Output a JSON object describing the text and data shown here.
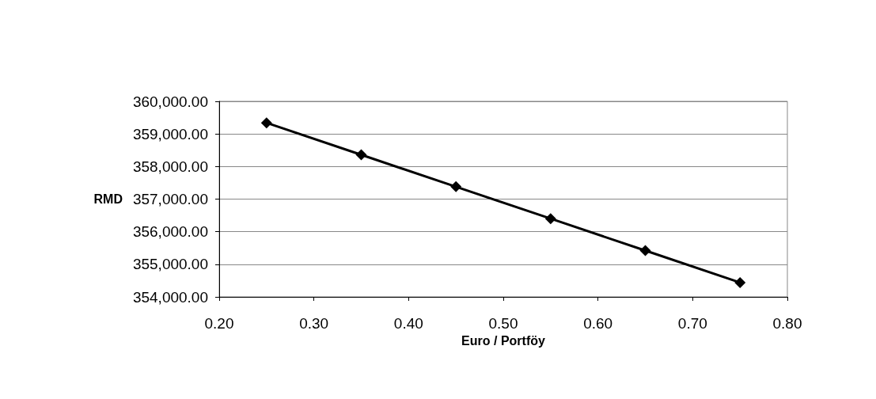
{
  "chart_data": {
    "type": "line",
    "xlabel": "Euro / Portföy",
    "ylabel": "RMD",
    "x": [
      0.25,
      0.35,
      0.45,
      0.55,
      0.65,
      0.75
    ],
    "series": [
      {
        "color": "#000000",
        "values": [
          359340,
          358360,
          357380,
          356400,
          355420,
          354440
        ]
      }
    ],
    "xlim": [
      0.2,
      0.8
    ],
    "xticks": [
      {
        "value": 0.2,
        "label": "0.20"
      },
      {
        "value": 0.3,
        "label": "0.30"
      },
      {
        "value": 0.4,
        "label": "0.40"
      },
      {
        "value": 0.5,
        "label": "0.50"
      },
      {
        "value": 0.6,
        "label": "0.60"
      },
      {
        "value": 0.7,
        "label": "0.70"
      },
      {
        "value": 0.8,
        "label": "0.80"
      }
    ],
    "ylim": [
      354000,
      360000
    ],
    "yticks": [
      {
        "value": 354000,
        "label": "354,000.00"
      },
      {
        "value": 355000,
        "label": "355,000.00"
      },
      {
        "value": 356000,
        "label": "356,000.00"
      },
      {
        "value": 357000,
        "label": "357,000.00"
      },
      {
        "value": 358000,
        "label": "358,000.00"
      },
      {
        "value": 359000,
        "label": "359,000.00"
      },
      {
        "value": 360000,
        "label": "360,000.00"
      }
    ],
    "grid": "y",
    "marker": "diamond",
    "line_style": "solid"
  }
}
